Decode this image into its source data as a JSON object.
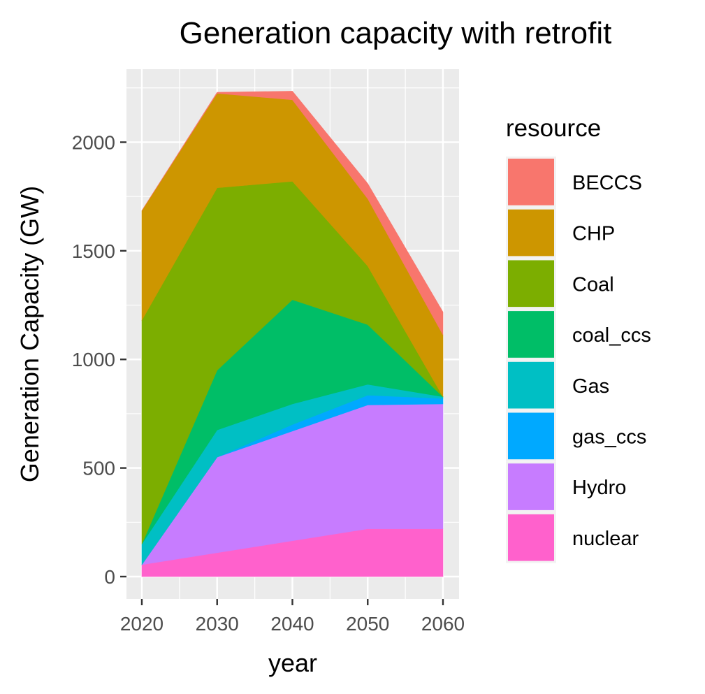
{
  "chart_data": {
    "type": "area",
    "stacked": true,
    "title": "Generation capacity with retrofit",
    "xlabel": "year",
    "ylabel": "Generation Capacity (GW)",
    "x": [
      2020,
      2030,
      2040,
      2050,
      2060
    ],
    "xticks": [
      "2020",
      "2030",
      "2040",
      "2050",
      "2060"
    ],
    "yticks": [
      "0",
      "500",
      "1000",
      "1500",
      "2000"
    ],
    "xlim": [
      2020,
      2060
    ],
    "ylim": [
      0,
      2230
    ],
    "grid": true,
    "panel_background": "#ebebeb",
    "legend": {
      "title": "resource",
      "position": "right"
    },
    "series": [
      {
        "name": "nuclear",
        "color": "#FF61CC",
        "values": [
          55,
          110,
          165,
          220,
          220
        ]
      },
      {
        "name": "Hydro",
        "color": "#C77CFF",
        "values": [
          0,
          440,
          505,
          570,
          575
        ]
      },
      {
        "name": "gas_ccs",
        "color": "#00A9FF",
        "values": [
          0,
          0,
          30,
          45,
          25
        ]
      },
      {
        "name": "Gas",
        "color": "#00BFC4",
        "values": [
          95,
          125,
          95,
          50,
          8
        ]
      },
      {
        "name": "coal_ccs",
        "color": "#00BE67",
        "values": [
          0,
          275,
          480,
          275,
          0
        ]
      },
      {
        "name": "Coal",
        "color": "#7CAE00",
        "values": [
          1030,
          840,
          545,
          270,
          0
        ]
      },
      {
        "name": "CHP",
        "color": "#CD9600",
        "values": [
          505,
          435,
          375,
          310,
          285
        ]
      },
      {
        "name": "BECCS",
        "color": "#F8766D",
        "values": [
          0,
          5,
          40,
          70,
          105
        ]
      }
    ],
    "legend_order": [
      "BECCS",
      "CHP",
      "Coal",
      "coal_ccs",
      "Gas",
      "gas_ccs",
      "Hydro",
      "nuclear"
    ]
  }
}
